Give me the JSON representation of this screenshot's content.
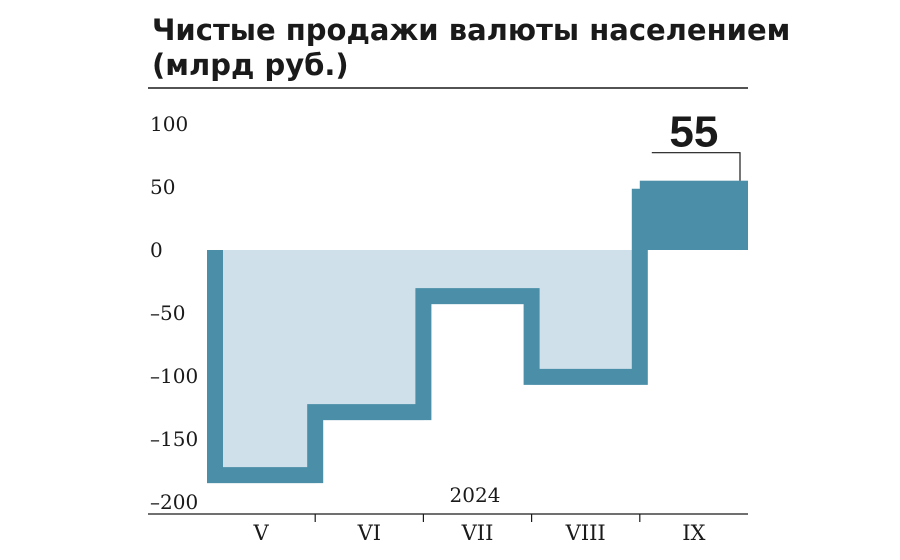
{
  "chart_data": {
    "type": "area",
    "title_lines": [
      "Чистые продажи валюты населением",
      "(млрд руб.)"
    ],
    "year_label": "2024",
    "categories": [
      "V",
      "VI",
      "VII",
      "VIII",
      "IX"
    ],
    "values": [
      -185,
      -135,
      -43,
      -107,
      55
    ],
    "y_ticks": [
      100,
      50,
      0,
      -50,
      -100,
      -150,
      -200
    ],
    "y_tick_labels": [
      "100",
      "50",
      "0",
      "–50",
      "–100",
      "–150",
      "–200"
    ],
    "ylim": [
      -200,
      100
    ],
    "callout": {
      "category": "IX",
      "label": "55"
    },
    "colors": {
      "area_fill": "#cfe0eb",
      "line": "#4a8ea8",
      "text": "#1a1a1a"
    },
    "grid": false,
    "legend": "none"
  }
}
